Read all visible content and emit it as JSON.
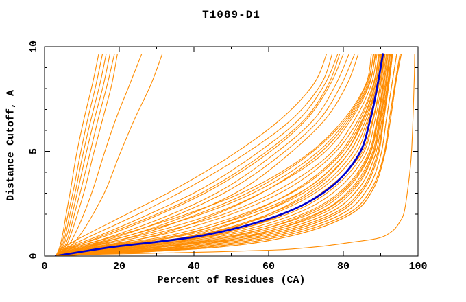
{
  "chart_data": {
    "type": "line",
    "title": "T1089-D1",
    "xlabel": "Percent of Residues (CA)",
    "ylabel": "Distance Cutoff, A",
    "xlim": [
      0,
      100
    ],
    "ylim": [
      0,
      10
    ],
    "x_major_ticks": [
      0,
      20,
      40,
      60,
      80,
      100
    ],
    "x_minor_ticks": [
      10,
      30,
      50,
      70,
      90
    ],
    "y_major_ticks": [
      0,
      5,
      10
    ],
    "y_minor_ticks": [
      1,
      2,
      3,
      4,
      6,
      7,
      8,
      9
    ],
    "grid": "off",
    "legend": "none",
    "colors": {
      "models": "#ff8c00",
      "median": "#0000cd",
      "axis": "#000000",
      "background": "#ffffff"
    },
    "y_levels": [
      0,
      0.4,
      1,
      2,
      3.2,
      4.8,
      6.5,
      8.2,
      9.65
    ],
    "model_curves": [
      [
        3,
        4,
        4.8,
        5.8,
        7,
        8.5,
        10.5,
        12.8,
        14.5
      ],
      [
        3,
        4.2,
        5.2,
        6.3,
        7.8,
        9.5,
        11.5,
        13.8,
        15.5
      ],
      [
        3,
        4.5,
        5.6,
        6.8,
        8.4,
        10.2,
        12.4,
        14.8,
        16.5
      ],
      [
        3,
        4.8,
        6,
        7.4,
        9,
        11,
        13.3,
        15.8,
        17.5
      ],
      [
        3,
        5.2,
        6.5,
        8,
        9.8,
        12,
        14.3,
        16.8,
        18.7
      ],
      [
        3,
        5.5,
        7,
        8.8,
        10.8,
        13,
        15.5,
        18,
        19.5
      ],
      [
        3,
        6,
        8,
        10.5,
        13,
        15.8,
        19,
        22.8,
        26
      ],
      [
        3,
        6.5,
        9.5,
        13,
        16.5,
        20,
        24,
        28.5,
        31.5
      ],
      [
        3,
        5,
        11,
        22,
        35,
        50,
        63,
        72,
        75.5
      ],
      [
        3,
        6,
        13,
        25,
        38,
        53,
        66,
        74,
        77
      ],
      [
        3,
        6.5,
        15,
        28,
        42,
        56,
        68,
        75,
        78.5
      ],
      [
        3,
        7,
        17,
        31,
        45,
        59,
        70,
        76.5,
        80
      ],
      [
        3,
        7.5,
        16,
        30,
        44,
        58,
        69.5,
        76,
        79
      ],
      [
        3,
        8,
        19,
        34,
        48,
        61,
        72,
        78,
        81.5
      ],
      [
        3,
        9,
        21,
        36,
        50,
        63,
        73.5,
        79.5,
        83
      ],
      [
        3,
        10,
        23,
        39,
        53,
        65,
        75,
        81,
        84
      ],
      [
        3,
        8,
        20,
        38,
        55,
        70,
        80,
        86,
        87.5
      ],
      [
        3,
        9,
        23,
        42,
        58,
        72,
        81,
        86.5,
        88
      ],
      [
        3,
        10,
        26,
        45,
        60,
        74,
        82,
        87,
        88.5
      ],
      [
        3,
        11,
        28,
        48,
        63,
        76,
        83,
        87.5,
        89
      ],
      [
        3,
        12,
        31,
        50,
        65,
        77,
        84,
        88,
        89.5
      ],
      [
        3,
        11,
        25,
        41,
        56.5,
        70.5,
        80.5,
        86.2,
        88.2
      ],
      [
        3,
        13,
        34,
        53,
        68,
        79,
        85,
        88.5,
        90
      ],
      [
        3,
        14,
        36,
        55,
        70,
        80,
        85.5,
        89,
        90.2
      ],
      [
        3,
        13.5,
        30,
        46,
        60,
        73,
        81.5,
        86.8,
        88.7
      ],
      [
        3,
        15,
        38,
        57,
        71,
        81,
        86,
        89.3,
        90.4
      ],
      [
        3,
        16,
        41,
        60,
        73,
        82,
        86.5,
        89.6,
        90.8
      ],
      [
        3,
        17,
        37,
        54,
        67.5,
        78.5,
        84.5,
        88.2,
        89.7
      ],
      [
        3,
        19,
        42,
        61,
        74,
        83,
        86.8,
        89.4,
        90.3
      ],
      [
        3,
        21,
        40,
        57,
        70,
        80,
        85.2,
        88.7,
        90
      ],
      [
        3,
        18,
        45,
        65,
        77,
        85,
        88,
        90,
        91.2
      ],
      [
        3,
        23,
        46,
        64,
        75.5,
        84.5,
        87.8,
        89.9,
        91
      ],
      [
        3,
        20,
        47,
        67,
        78.5,
        85.8,
        88.5,
        90.3,
        91.5
      ],
      [
        3,
        25,
        44,
        60,
        72,
        81,
        86,
        89,
        90.5
      ],
      [
        3,
        22,
        49,
        69,
        80,
        86.5,
        89,
        90.6,
        91.8
      ],
      [
        3,
        29,
        52,
        70,
        80.5,
        86.8,
        89.1,
        90.7,
        91.7
      ],
      [
        3,
        24,
        51,
        71,
        81,
        87,
        89.3,
        90.9,
        92
      ],
      [
        3,
        26,
        53,
        72.5,
        82,
        87.5,
        89.6,
        91.2,
        92.3
      ],
      [
        3,
        28,
        55,
        74,
        83,
        88,
        90,
        91.5,
        92.6
      ],
      [
        3,
        34,
        56,
        73,
        82.5,
        87.8,
        89.8,
        91.4,
        92.4
      ],
      [
        3,
        30,
        57,
        75.5,
        84,
        88.5,
        90.3,
        91.8,
        92.9
      ],
      [
        3,
        33,
        59,
        77,
        85,
        89,
        90.6,
        92,
        93
      ],
      [
        3,
        36,
        61,
        78,
        85.5,
        89.3,
        90.8,
        92.2,
        93.2
      ],
      [
        3,
        39,
        63,
        79.5,
        86.5,
        90,
        91.5,
        93,
        94.3
      ],
      [
        3,
        42,
        65,
        81,
        87.5,
        90.8,
        92.3,
        93.8,
        95.2
      ],
      [
        3,
        45,
        67,
        82,
        88,
        91,
        92.6,
        94,
        95.5
      ]
    ],
    "median_curve": [
      3,
      17,
      43,
      63.5,
      76,
      84,
      87.2,
      89.2,
      90.6
    ],
    "best_model_curve": [
      [
        3,
        0.05
      ],
      [
        25,
        0.12
      ],
      [
        45,
        0.2
      ],
      [
        60,
        0.28
      ],
      [
        66,
        0.33
      ],
      [
        75,
        0.48
      ],
      [
        82,
        0.65
      ],
      [
        88,
        0.8
      ],
      [
        91,
        0.95
      ],
      [
        93.5,
        1.25
      ],
      [
        95,
        1.6
      ],
      [
        96.3,
        2.1
      ],
      [
        97.4,
        3.4
      ],
      [
        98.2,
        4.8
      ],
      [
        98.7,
        6.8
      ],
      [
        99,
        8.5
      ],
      [
        99.1,
        9.65
      ]
    ]
  }
}
